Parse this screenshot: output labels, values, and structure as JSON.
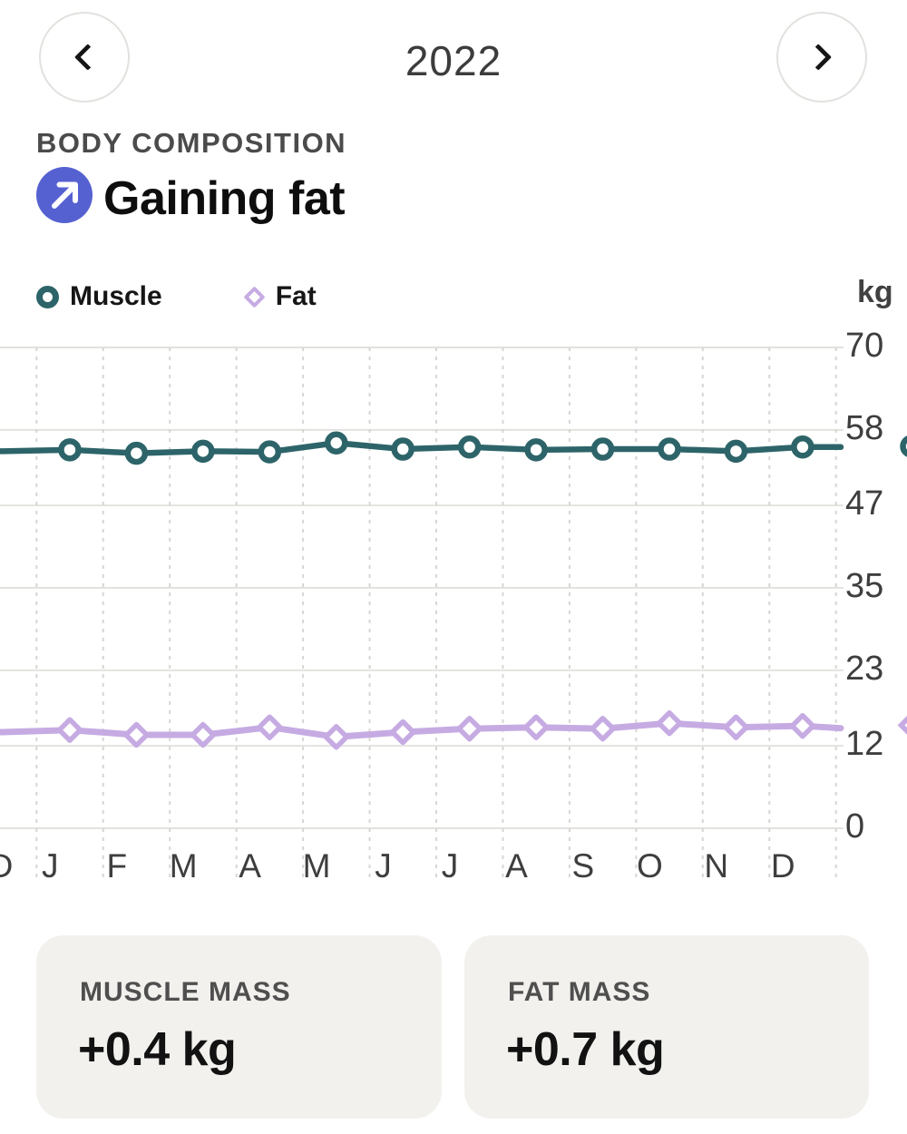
{
  "header": {
    "year": "2022"
  },
  "section": {
    "label": "BODY COMPOSITION",
    "headline": "Gaining fat",
    "trend_icon": "arrow-up-right"
  },
  "legend": [
    {
      "label": "Muscle",
      "marker": "circle-outline"
    },
    {
      "label": "Fat",
      "marker": "diamond-outline"
    }
  ],
  "axis_unit": "kg",
  "chart_data": {
    "type": "line",
    "categories": [
      "D",
      "J",
      "F",
      "M",
      "A",
      "M",
      "J",
      "J",
      "A",
      "S",
      "O",
      "N",
      "D"
    ],
    "series": [
      {
        "name": "Muscle",
        "color": "#2d6469",
        "marker": "circle",
        "values": [
          54.9,
          55.1,
          54.6,
          54.9,
          54.8,
          56.1,
          55.2,
          55.5,
          55.1,
          55.2,
          55.2,
          54.9,
          55.5
        ]
      },
      {
        "name": "Fat",
        "color": "#c6abe3",
        "marker": "diamond",
        "values": [
          14.0,
          14.3,
          13.6,
          13.6,
          14.7,
          13.3,
          14.0,
          14.5,
          14.7,
          14.5,
          15.3,
          14.7,
          14.9
        ]
      }
    ],
    "right_edge_preview": {
      "Muscle": 55.6,
      "Fat": 15.0
    },
    "title": "Body composition 2022",
    "xlabel": "",
    "ylabel": "kg",
    "y_ticks": [
      70,
      58,
      47,
      35,
      23,
      12,
      0
    ],
    "ylim": [
      0,
      70
    ],
    "grid": {
      "horizontal": "solid",
      "vertical": "dashed"
    },
    "legend_position": "top-left",
    "notes": "first category D is previous December, clipped at the left edge; next point peeks at right edge"
  },
  "summary_cards": [
    {
      "label": "MUSCLE MASS",
      "value": "+0.4 kg"
    },
    {
      "label": "FAT MASS",
      "value": "+0.7 kg"
    }
  ],
  "colors": {
    "muscle": "#2d6469",
    "fat": "#c6abe3",
    "trend_icon_bg": "#5661d1",
    "grid": "#e4e2df",
    "grid_dash": "#d8d6d3",
    "card_bg": "#f2f1ee",
    "nav_border": "#e3e1de"
  }
}
